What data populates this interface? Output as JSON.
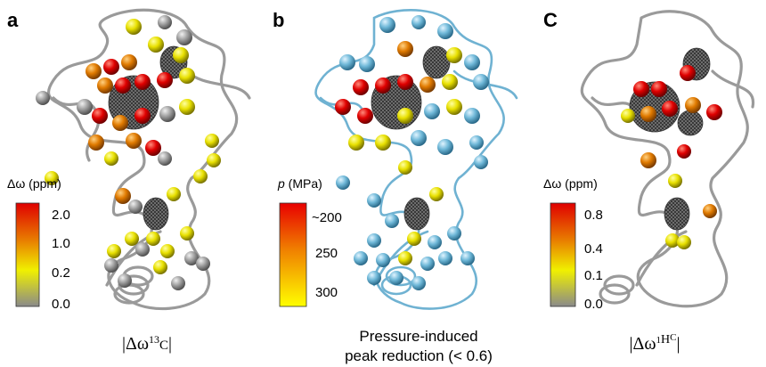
{
  "panels": [
    {
      "label": "a",
      "colorbar": {
        "title": "Δω (ppm)",
        "ticks": [
          "2.0",
          "1.0",
          "0.2",
          "0.0"
        ]
      },
      "caption": {
        "main": "|Δω",
        "sup": "13",
        "tail": "C",
        "close": "|"
      }
    },
    {
      "label": "b",
      "colorbar": {
        "title_symbol": "p",
        "title_unit": " (MPa)",
        "ticks": [
          "~200",
          "250",
          "300"
        ]
      },
      "caption": [
        "Pressure-induced",
        "peak reduction (< 0.6)"
      ]
    },
    {
      "label": "C",
      "colorbar": {
        "title": "Δω (ppm)",
        "ticks": [
          "0.8",
          "0.4",
          "0.1",
          "0.0"
        ]
      },
      "caption": {
        "main": "|Δω",
        "sup": "1",
        "mid": "H",
        "sup2": "C",
        "close": "|"
      }
    }
  ]
}
